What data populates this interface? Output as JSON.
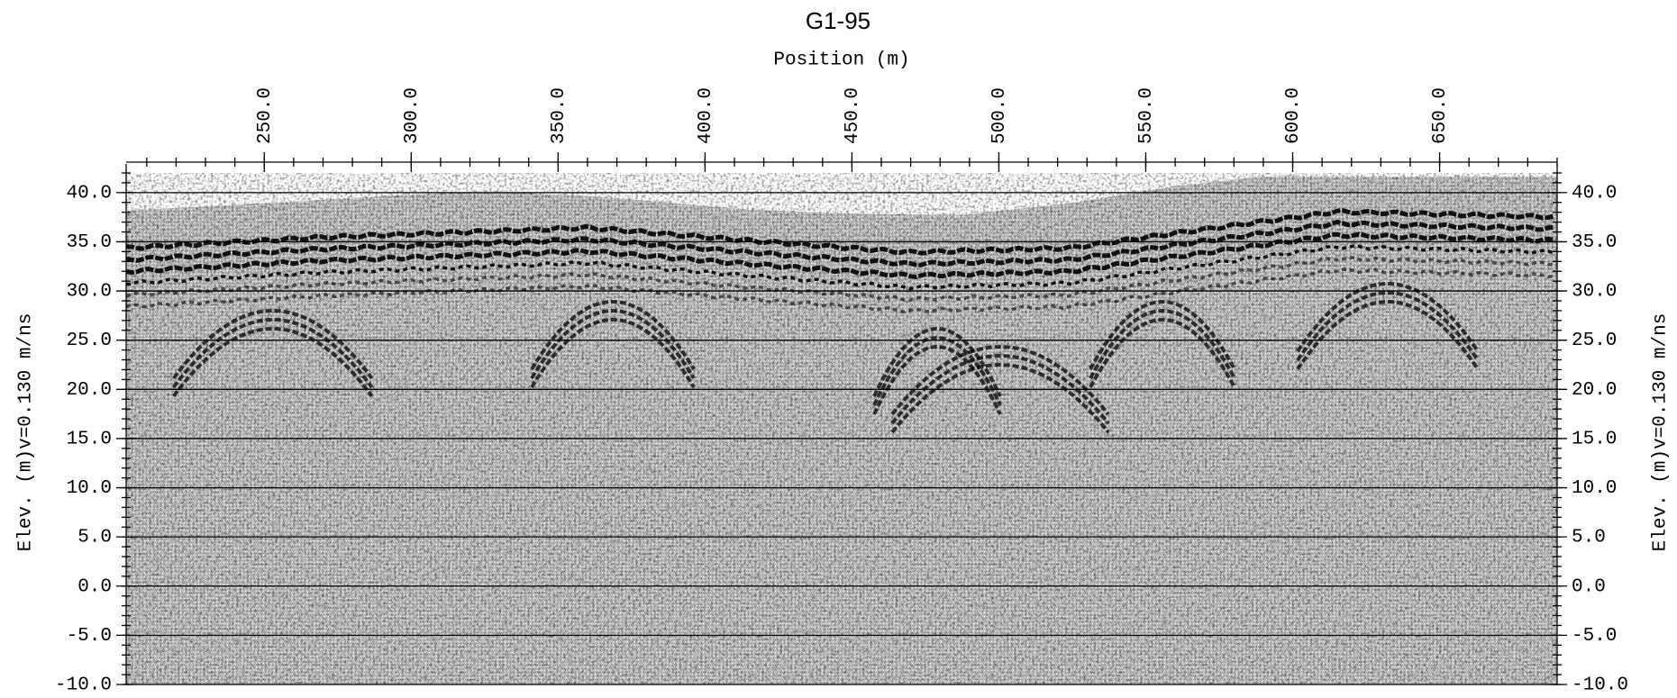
{
  "chart_data": {
    "type": "radargram",
    "title": "G1-95",
    "x_label": "Position (m)",
    "y_label": "Elev. (m)v=0.130 m/ns",
    "xlim": [
      203,
      690
    ],
    "xticks": [
      {
        "value": 250,
        "label": "250.0"
      },
      {
        "value": 300,
        "label": "300.0"
      },
      {
        "value": 350,
        "label": "350.0"
      },
      {
        "value": 400,
        "label": "400.0"
      },
      {
        "value": 450,
        "label": "450.0"
      },
      {
        "value": 500,
        "label": "500.0"
      },
      {
        "value": 550,
        "label": "550.0"
      },
      {
        "value": 600,
        "label": "600.0"
      },
      {
        "value": 650,
        "label": "650.0"
      }
    ],
    "ylim": [
      -10,
      42
    ],
    "yticks": [
      {
        "value": 40,
        "label": "40.0"
      },
      {
        "value": 35,
        "label": "35.0"
      },
      {
        "value": 30,
        "label": "30.0"
      },
      {
        "value": 25,
        "label": "25.0"
      },
      {
        "value": 20,
        "label": "20.0"
      },
      {
        "value": 15,
        "label": "15.0"
      },
      {
        "value": 10,
        "label": "10.0"
      },
      {
        "value": 5,
        "label": "5.0"
      },
      {
        "value": 0,
        "label": "0.0"
      },
      {
        "value": -5,
        "label": "-5.0"
      },
      {
        "value": -10,
        "label": "-10.0"
      }
    ],
    "grid": true
  }
}
